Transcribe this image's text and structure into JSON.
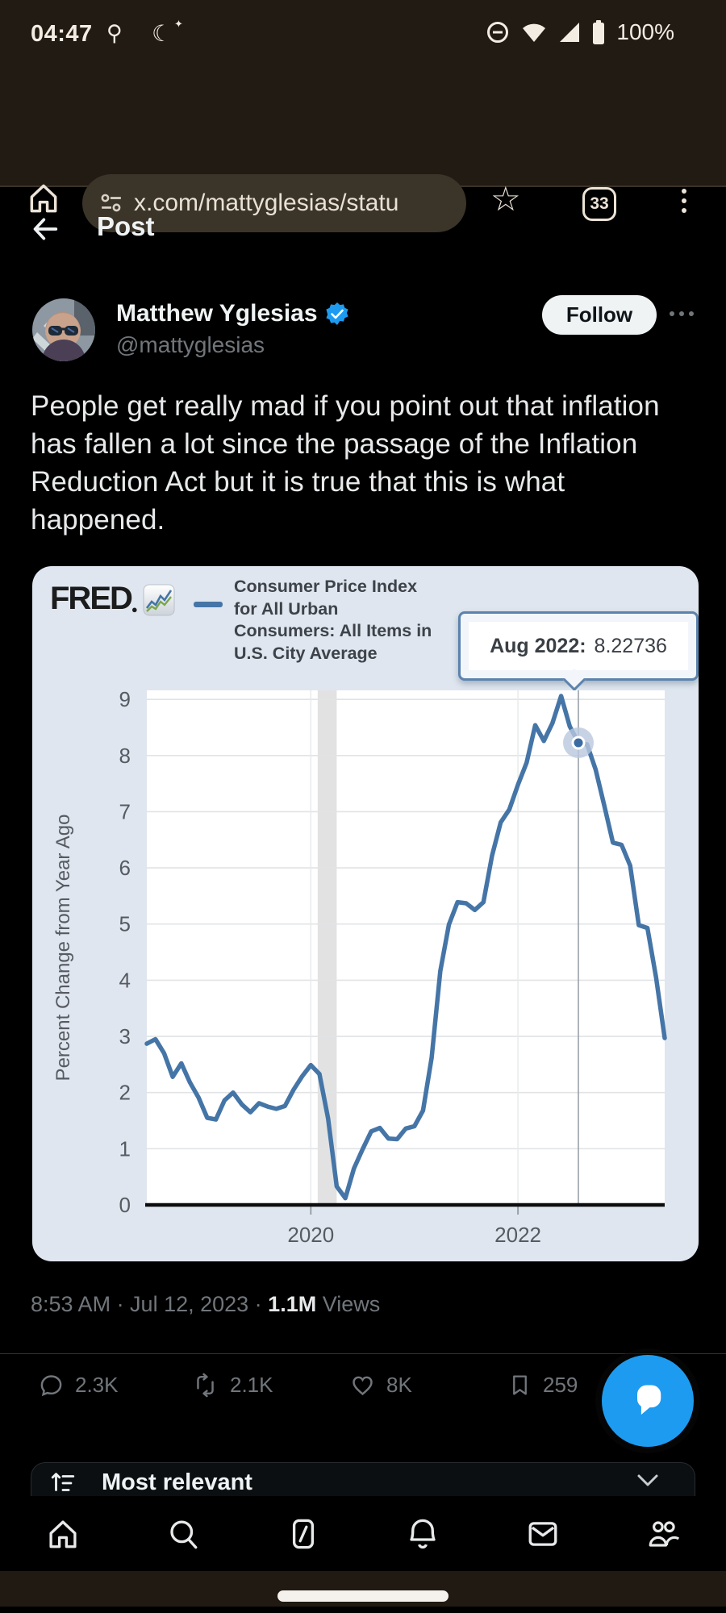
{
  "status_bar": {
    "time": "04:47",
    "left_icons": [
      "work-tools",
      "bedtime-moon"
    ],
    "right_icons": [
      "do-not-disturb",
      "wifi",
      "cell-signal",
      "battery"
    ],
    "battery_percent": "100%"
  },
  "browser": {
    "url": "x.com/mattyglesias/statu",
    "tab_count": "33"
  },
  "page_header": {
    "title": "Post"
  },
  "post": {
    "author": "Matthew Yglesias",
    "handle": "@mattyglesias",
    "follow_label": "Follow",
    "body_lines": [
      "People get really mad if you point out that inflation",
      "has fallen a lot since the passage of the Inflation",
      "Reduction Act but it is true that this is what",
      "happened."
    ],
    "timestamp": "8:53 AM · Jul 12, 2023 · ",
    "views_count": "1.1M",
    "views_label": " Views",
    "stats": {
      "replies": "2.3K",
      "reposts": "2.1K",
      "likes": "8K",
      "bookmarks": "259"
    }
  },
  "replies_sort": {
    "label": "Most relevant"
  },
  "chart_data": {
    "type": "line",
    "source_logo": "FRED",
    "legend_lines": [
      "Consumer Price Index",
      "for All Urban",
      "Consumers: All Items in",
      "U.S. City Average"
    ],
    "series_name": "Consumer Price Index for All Urban Consumers: All Items in U.S. City Average",
    "ylabel": "Percent Change from Year Ago",
    "yticks": [
      0,
      1,
      2,
      3,
      4,
      5,
      6,
      7,
      8,
      9
    ],
    "ylim": [
      0,
      9.16
    ],
    "x_start": "2018-06",
    "x_end": "2023-06",
    "xticks": [
      {
        "label": "2020",
        "index": 19
      },
      {
        "label": "2022",
        "index": 43
      }
    ],
    "recession_band": {
      "label": "2020 recession",
      "from_index": 19.8,
      "to_index": 22.0
    },
    "highlight": {
      "index": 50,
      "value": 8.22736,
      "tooltip_label": "Aug 2022:",
      "tooltip_value": "8.22736"
    },
    "line_color": "#4575a7",
    "values": [
      2.87,
      2.95,
      2.7,
      2.28,
      2.52,
      2.18,
      1.91,
      1.55,
      1.52,
      1.86,
      2.0,
      1.79,
      1.65,
      1.81,
      1.75,
      1.71,
      1.76,
      2.05,
      2.29,
      2.49,
      2.33,
      1.54,
      0.33,
      0.12,
      0.65,
      0.99,
      1.31,
      1.37,
      1.18,
      1.17,
      1.36,
      1.4,
      1.68,
      2.62,
      4.16,
      4.99,
      5.39,
      5.37,
      5.25,
      5.39,
      6.22,
      6.81,
      7.04,
      7.48,
      7.87,
      8.54,
      8.26,
      8.58,
      9.06,
      8.52,
      8.23,
      8.2,
      7.75,
      7.11,
      6.45,
      6.41,
      6.04,
      4.98,
      4.93,
      4.05,
      2.97
    ]
  }
}
